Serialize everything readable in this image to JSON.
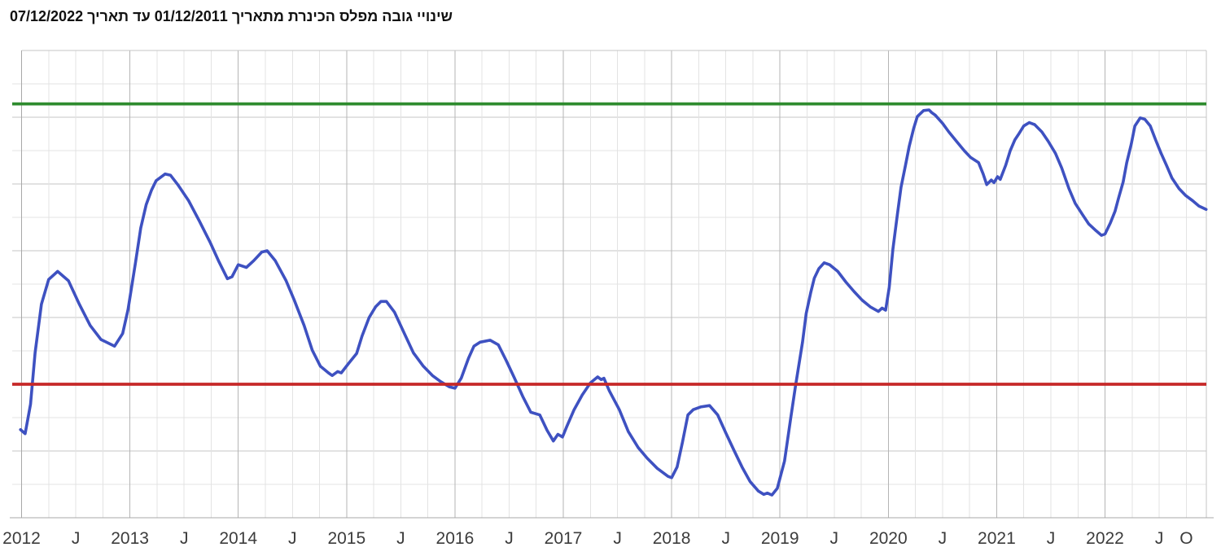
{
  "title": "שינויי גובה מפלס הכינרת מתאריך 01/12/2011 עד תאריך 07/12/2022",
  "colors": {
    "background": "#ffffff",
    "series_blue": "#3e51c1",
    "upper_line_green": "#2e8b2e",
    "lower_line_red": "#c62828",
    "grid_minor": "#e3e3e3",
    "grid_major": "#c6c6c6",
    "grid_year": "#b5b5b5",
    "axis": "#a8a8a8",
    "tick_label": "#3c3c3c",
    "title_color": "#111111"
  },
  "chart_data": {
    "type": "line",
    "title": "שינויי גובה מפלס הכינרת מתאריך 01/12/2011 עד תאריך 07/12/2022",
    "xlabel": "",
    "ylabel": "",
    "grid": true,
    "legend": false,
    "y_axis": {
      "min": -215.0,
      "max": -208.0,
      "gridline_step_m": 0.5,
      "tick_labels_visible": false,
      "unit": "m"
    },
    "x_axis": {
      "start_year": 2012.0,
      "end_year": 2022.935,
      "gridline_step_years": 0.25,
      "tick_labels": [
        {
          "t": 2012.0,
          "label": "2012"
        },
        {
          "t": 2012.5,
          "label": "J"
        },
        {
          "t": 2013.0,
          "label": "2013"
        },
        {
          "t": 2013.5,
          "label": "J"
        },
        {
          "t": 2014.0,
          "label": "2014"
        },
        {
          "t": 2014.5,
          "label": "J"
        },
        {
          "t": 2015.0,
          "label": "2015"
        },
        {
          "t": 2015.5,
          "label": "J"
        },
        {
          "t": 2016.0,
          "label": "2016"
        },
        {
          "t": 2016.5,
          "label": "J"
        },
        {
          "t": 2017.0,
          "label": "2017"
        },
        {
          "t": 2017.5,
          "label": "J"
        },
        {
          "t": 2018.0,
          "label": "2018"
        },
        {
          "t": 2018.5,
          "label": "J"
        },
        {
          "t": 2019.0,
          "label": "2019"
        },
        {
          "t": 2019.5,
          "label": "J"
        },
        {
          "t": 2020.0,
          "label": "2020"
        },
        {
          "t": 2020.5,
          "label": "J"
        },
        {
          "t": 2021.0,
          "label": "2021"
        },
        {
          "t": 2021.5,
          "label": "J"
        },
        {
          "t": 2022.0,
          "label": "2022"
        },
        {
          "t": 2022.5,
          "label": "J"
        },
        {
          "t": 2022.75,
          "label": "O"
        }
      ]
    },
    "reference_lines": [
      {
        "id": "upper-green-line",
        "value": -208.8,
        "color": "#2e8b2e"
      },
      {
        "id": "lower-red-line",
        "value": -213.0,
        "color": "#c62828"
      }
    ],
    "series": [
      {
        "id": "kinneret-water-level",
        "color": "#3e51c1",
        "points": [
          [
            2011.99,
            -213.68
          ],
          [
            2012.033,
            -213.74
          ],
          [
            2012.083,
            -213.3
          ],
          [
            2012.125,
            -212.53
          ],
          [
            2012.183,
            -211.8
          ],
          [
            2012.25,
            -211.43
          ],
          [
            2012.333,
            -211.31
          ],
          [
            2012.433,
            -211.45
          ],
          [
            2012.533,
            -211.8
          ],
          [
            2012.633,
            -212.12
          ],
          [
            2012.733,
            -212.33
          ],
          [
            2012.858,
            -212.43
          ],
          [
            2012.933,
            -212.24
          ],
          [
            2012.983,
            -211.88
          ],
          [
            2013.05,
            -211.19
          ],
          [
            2013.1,
            -210.66
          ],
          [
            2013.15,
            -210.31
          ],
          [
            2013.2,
            -210.09
          ],
          [
            2013.242,
            -209.95
          ],
          [
            2013.325,
            -209.85
          ],
          [
            2013.375,
            -209.87
          ],
          [
            2013.442,
            -210.01
          ],
          [
            2013.542,
            -210.25
          ],
          [
            2013.642,
            -210.56
          ],
          [
            2013.742,
            -210.88
          ],
          [
            2013.817,
            -211.15
          ],
          [
            2013.9,
            -211.42
          ],
          [
            2013.942,
            -211.39
          ],
          [
            2014.0,
            -211.21
          ],
          [
            2014.075,
            -211.25
          ],
          [
            2014.142,
            -211.15
          ],
          [
            2014.217,
            -211.02
          ],
          [
            2014.267,
            -211.0
          ],
          [
            2014.342,
            -211.15
          ],
          [
            2014.442,
            -211.45
          ],
          [
            2014.517,
            -211.74
          ],
          [
            2014.608,
            -212.12
          ],
          [
            2014.683,
            -212.49
          ],
          [
            2014.758,
            -212.73
          ],
          [
            2014.833,
            -212.83
          ],
          [
            2014.867,
            -212.87
          ],
          [
            2014.917,
            -212.81
          ],
          [
            2014.95,
            -212.83
          ],
          [
            2015.017,
            -212.69
          ],
          [
            2015.092,
            -212.54
          ],
          [
            2015.142,
            -212.28
          ],
          [
            2015.208,
            -212.0
          ],
          [
            2015.267,
            -211.84
          ],
          [
            2015.317,
            -211.76
          ],
          [
            2015.367,
            -211.76
          ],
          [
            2015.442,
            -211.92
          ],
          [
            2015.533,
            -212.24
          ],
          [
            2015.617,
            -212.53
          ],
          [
            2015.708,
            -212.73
          ],
          [
            2015.792,
            -212.87
          ],
          [
            2015.867,
            -212.96
          ],
          [
            2015.95,
            -213.04
          ],
          [
            2016.0,
            -213.06
          ],
          [
            2016.058,
            -212.91
          ],
          [
            2016.125,
            -212.61
          ],
          [
            2016.175,
            -212.43
          ],
          [
            2016.233,
            -212.37
          ],
          [
            2016.325,
            -212.34
          ],
          [
            2016.4,
            -212.41
          ],
          [
            2016.475,
            -212.65
          ],
          [
            2016.55,
            -212.91
          ],
          [
            2016.625,
            -213.18
          ],
          [
            2016.7,
            -213.42
          ],
          [
            2016.783,
            -213.46
          ],
          [
            2016.85,
            -213.69
          ],
          [
            2016.908,
            -213.85
          ],
          [
            2016.95,
            -213.75
          ],
          [
            2016.992,
            -213.79
          ],
          [
            2017.033,
            -213.63
          ],
          [
            2017.1,
            -213.38
          ],
          [
            2017.175,
            -213.16
          ],
          [
            2017.25,
            -212.98
          ],
          [
            2017.317,
            -212.89
          ],
          [
            2017.35,
            -212.93
          ],
          [
            2017.375,
            -212.91
          ],
          [
            2017.425,
            -213.1
          ],
          [
            2017.517,
            -213.38
          ],
          [
            2017.6,
            -213.71
          ],
          [
            2017.692,
            -213.95
          ],
          [
            2017.775,
            -214.11
          ],
          [
            2017.867,
            -214.26
          ],
          [
            2017.967,
            -214.38
          ],
          [
            2018.0,
            -214.4
          ],
          [
            2018.05,
            -214.24
          ],
          [
            2018.1,
            -213.87
          ],
          [
            2018.15,
            -213.46
          ],
          [
            2018.2,
            -213.38
          ],
          [
            2018.267,
            -213.34
          ],
          [
            2018.35,
            -213.32
          ],
          [
            2018.425,
            -213.46
          ],
          [
            2018.5,
            -213.73
          ],
          [
            2018.575,
            -213.99
          ],
          [
            2018.65,
            -214.24
          ],
          [
            2018.725,
            -214.46
          ],
          [
            2018.8,
            -214.6
          ],
          [
            2018.85,
            -214.65
          ],
          [
            2018.883,
            -214.63
          ],
          [
            2018.925,
            -214.66
          ],
          [
            2018.975,
            -214.56
          ],
          [
            2019.042,
            -214.15
          ],
          [
            2019.1,
            -213.5
          ],
          [
            2019.142,
            -213.04
          ],
          [
            2019.208,
            -212.37
          ],
          [
            2019.242,
            -211.94
          ],
          [
            2019.283,
            -211.63
          ],
          [
            2019.317,
            -211.41
          ],
          [
            2019.358,
            -211.27
          ],
          [
            2019.408,
            -211.18
          ],
          [
            2019.458,
            -211.21
          ],
          [
            2019.533,
            -211.31
          ],
          [
            2019.608,
            -211.47
          ],
          [
            2019.683,
            -211.61
          ],
          [
            2019.758,
            -211.74
          ],
          [
            2019.833,
            -211.84
          ],
          [
            2019.908,
            -211.91
          ],
          [
            2019.942,
            -211.86
          ],
          [
            2019.975,
            -211.89
          ],
          [
            2020.008,
            -211.55
          ],
          [
            2020.042,
            -210.98
          ],
          [
            2020.083,
            -210.46
          ],
          [
            2020.117,
            -210.05
          ],
          [
            2020.158,
            -209.72
          ],
          [
            2020.192,
            -209.44
          ],
          [
            2020.233,
            -209.17
          ],
          [
            2020.267,
            -208.99
          ],
          [
            2020.325,
            -208.9
          ],
          [
            2020.375,
            -208.89
          ],
          [
            2020.4,
            -208.93
          ],
          [
            2020.433,
            -208.97
          ],
          [
            2020.5,
            -209.09
          ],
          [
            2020.558,
            -209.22
          ],
          [
            2020.633,
            -209.37
          ],
          [
            2020.7,
            -209.5
          ],
          [
            2020.758,
            -209.6
          ],
          [
            2020.833,
            -209.68
          ],
          [
            2020.875,
            -209.85
          ],
          [
            2020.908,
            -210.01
          ],
          [
            2020.95,
            -209.94
          ],
          [
            2020.975,
            -209.98
          ],
          [
            2021.008,
            -209.89
          ],
          [
            2021.033,
            -209.93
          ],
          [
            2021.083,
            -209.72
          ],
          [
            2021.125,
            -209.5
          ],
          [
            2021.167,
            -209.34
          ],
          [
            2021.2,
            -209.26
          ],
          [
            2021.25,
            -209.13
          ],
          [
            2021.3,
            -209.08
          ],
          [
            2021.35,
            -209.11
          ],
          [
            2021.417,
            -209.22
          ],
          [
            2021.475,
            -209.36
          ],
          [
            2021.542,
            -209.54
          ],
          [
            2021.6,
            -209.76
          ],
          [
            2021.667,
            -210.07
          ],
          [
            2021.725,
            -210.29
          ],
          [
            2021.792,
            -210.46
          ],
          [
            2021.85,
            -210.6
          ],
          [
            2021.917,
            -210.7
          ],
          [
            2021.967,
            -210.77
          ],
          [
            2022.0,
            -210.75
          ],
          [
            2022.05,
            -210.58
          ],
          [
            2022.092,
            -210.41
          ],
          [
            2022.125,
            -210.21
          ],
          [
            2022.167,
            -209.97
          ],
          [
            2022.2,
            -209.68
          ],
          [
            2022.242,
            -209.4
          ],
          [
            2022.275,
            -209.13
          ],
          [
            2022.325,
            -209.01
          ],
          [
            2022.367,
            -209.03
          ],
          [
            2022.417,
            -209.13
          ],
          [
            2022.467,
            -209.34
          ],
          [
            2022.517,
            -209.54
          ],
          [
            2022.567,
            -209.72
          ],
          [
            2022.617,
            -209.91
          ],
          [
            2022.683,
            -210.07
          ],
          [
            2022.742,
            -210.17
          ],
          [
            2022.808,
            -210.25
          ],
          [
            2022.867,
            -210.33
          ],
          [
            2022.933,
            -210.38
          ]
        ]
      }
    ]
  }
}
